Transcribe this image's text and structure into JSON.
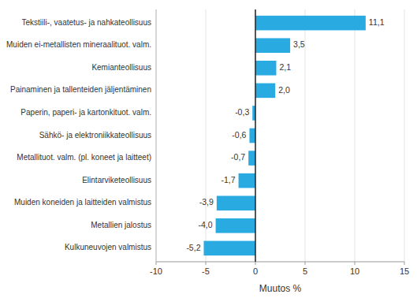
{
  "chart_data": {
    "type": "bar",
    "orientation": "horizontal",
    "categories": [
      "Kulkuneuvojen valmistus",
      "Metallien jalostus",
      "Muiden koneiden ja laitteiden valmistus",
      "Elintarviketeollisuus",
      "Metallituot. valm. (pl. koneet ja laitteet)",
      "Sähkö- ja elektroniikkateollisuus",
      "Paperin, paperi- ja kartonkituot. valm.",
      "Painaminen ja tallenteiden jäljentäminen",
      "Kemianteollisuus",
      "Muiden ei-metallisten mineraalituot. valm.",
      "Tekstiili-, vaatetus- ja nahkateollisuus"
    ],
    "values": [
      -5.2,
      -4.0,
      -3.9,
      -1.7,
      -0.7,
      -0.6,
      -0.3,
      2.0,
      2.1,
      3.5,
      11.1
    ],
    "value_labels": [
      "-5,2",
      "-4,0",
      "-3,9",
      "-1,7",
      "-0,7",
      "-0,6",
      "-0,3",
      "2,0",
      "2,1",
      "3,5",
      "11,1"
    ],
    "data_labels": true,
    "color": "#29abe2",
    "xlim": [
      -10,
      15
    ],
    "xticks": [
      -10,
      -5,
      0,
      5,
      10,
      15
    ],
    "xlabel": "Muutos %",
    "grid": true
  }
}
